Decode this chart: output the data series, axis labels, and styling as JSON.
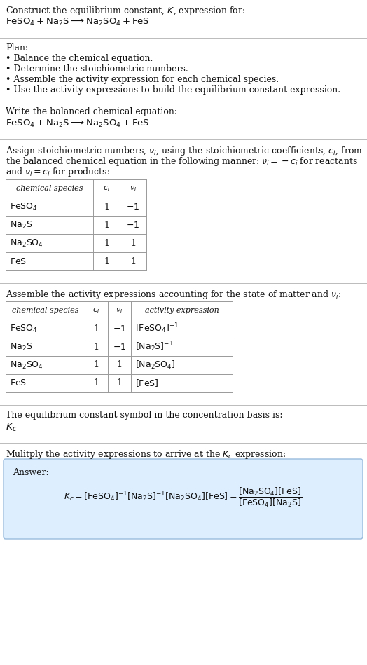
{
  "title_line1": "Construct the equilibrium constant, $K$, expression for:",
  "title_line2": "$\\mathrm{FeSO_4 + Na_2S \\longrightarrow Na_2SO_4 + FeS}$",
  "plan_header": "Plan:",
  "plan_bullets": [
    "• Balance the chemical equation.",
    "• Determine the stoichiometric numbers.",
    "• Assemble the activity expression for each chemical species.",
    "• Use the activity expressions to build the equilibrium constant expression."
  ],
  "section2_header": "Write the balanced chemical equation:",
  "section2_eq": "$\\mathrm{FeSO_4 + Na_2S \\longrightarrow Na_2SO_4 + FeS}$",
  "section3_header_parts": [
    "Assign stoichiometric numbers, $\\nu_i$, using the stoichiometric coefficients, $c_i$, from",
    "the balanced chemical equation in the following manner: $\\nu_i = -c_i$ for reactants",
    "and $\\nu_i = c_i$ for products:"
  ],
  "table1_headers": [
    "chemical species",
    "$c_i$",
    "$\\nu_i$"
  ],
  "table1_rows": [
    [
      "$\\mathrm{FeSO_4}$",
      "1",
      "$-1$"
    ],
    [
      "$\\mathrm{Na_2S}$",
      "1",
      "$-1$"
    ],
    [
      "$\\mathrm{Na_2SO_4}$",
      "1",
      "1"
    ],
    [
      "$\\mathrm{FeS}$",
      "1",
      "1"
    ]
  ],
  "section4_header": "Assemble the activity expressions accounting for the state of matter and $\\nu_i$:",
  "table2_headers": [
    "chemical species",
    "$c_i$",
    "$\\nu_i$",
    "activity expression"
  ],
  "table2_rows": [
    [
      "$\\mathrm{FeSO_4}$",
      "1",
      "$-1$",
      "$[\\mathrm{FeSO_4}]^{-1}$"
    ],
    [
      "$\\mathrm{Na_2S}$",
      "1",
      "$-1$",
      "$[\\mathrm{Na_2S}]^{-1}$"
    ],
    [
      "$\\mathrm{Na_2SO_4}$",
      "1",
      "1",
      "$[\\mathrm{Na_2SO_4}]$"
    ],
    [
      "$\\mathrm{FeS}$",
      "1",
      "1",
      "$[\\mathrm{FeS}]$"
    ]
  ],
  "section5_line1": "The equilibrium constant symbol in the concentration basis is:",
  "section5_line2": "$K_c$",
  "section6_header": "Mulitply the activity expressions to arrive at the $K_c$ expression:",
  "answer_label": "Answer:",
  "bg_color": "#ffffff",
  "table_border_color": "#999999",
  "answer_box_color": "#ddeeff",
  "answer_box_border": "#99bbdd",
  "separator_color": "#bbbbbb",
  "text_color": "#111111",
  "font_size": 9.0
}
